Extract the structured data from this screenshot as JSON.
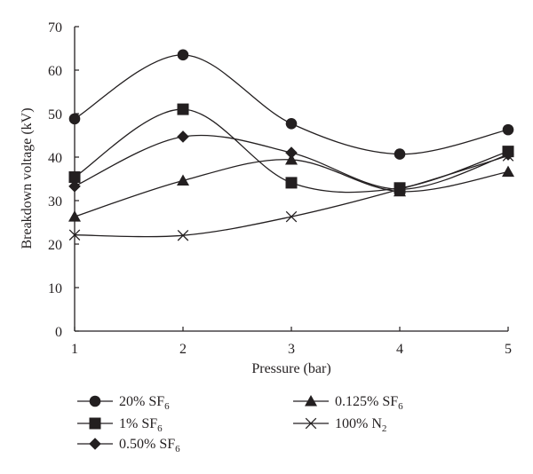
{
  "chart_data": {
    "type": "line",
    "title": "",
    "xlabel": "Pressure (bar)",
    "ylabel": "Breakdown voltage (kV)",
    "x": [
      1,
      2,
      3,
      4,
      5
    ],
    "xlim": [
      1,
      5
    ],
    "ylim": [
      0,
      70
    ],
    "xticks": [
      "1",
      "2",
      "3",
      "4",
      "5"
    ],
    "yticks": [
      "0",
      "10",
      "20",
      "30",
      "40",
      "50",
      "60",
      "70"
    ],
    "grid": false,
    "legend_position": "bottom",
    "series": [
      {
        "name": "20% SF",
        "sub": "6",
        "marker": "circle",
        "values": [
          48.8,
          63.5,
          47.7,
          40.7,
          46.3
        ]
      },
      {
        "name": "1% SF",
        "sub": "6",
        "marker": "square",
        "values": [
          35.4,
          51.0,
          34.1,
          32.9,
          41.3
        ]
      },
      {
        "name": "0.50% SF",
        "sub": "6",
        "marker": "diamond",
        "values": [
          33.3,
          44.7,
          41.0,
          32.6,
          40.6
        ]
      },
      {
        "name": "0.125% SF",
        "sub": "6",
        "marker": "triangle",
        "values": [
          26.3,
          34.6,
          39.4,
          32.1,
          36.6
        ]
      },
      {
        "name": "100% N",
        "sub": "2",
        "marker": "cross",
        "values": [
          22.1,
          22.0,
          26.3,
          32.6,
          40.3
        ]
      }
    ],
    "colors": {
      "line": "#231f20",
      "marker": "#231f20"
    }
  }
}
